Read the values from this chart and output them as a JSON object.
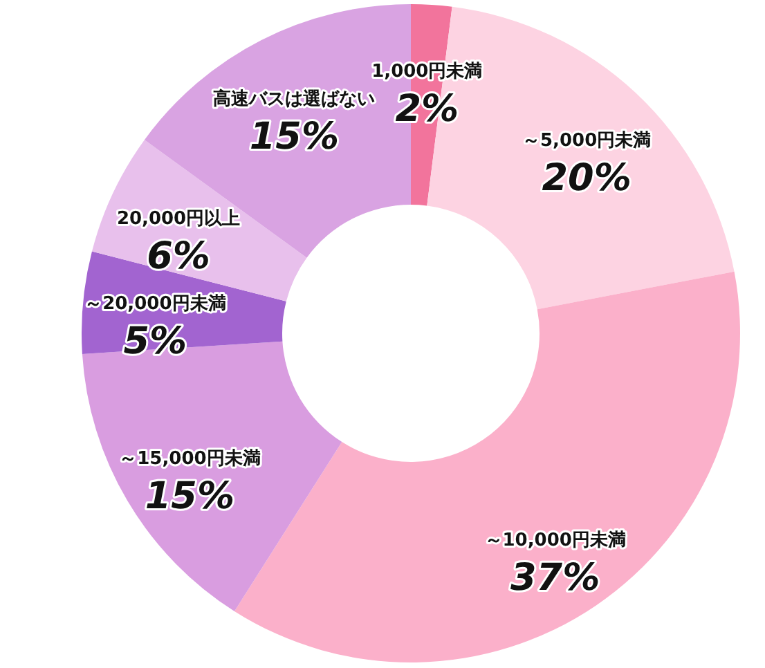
{
  "chart_data": {
    "type": "donut",
    "categories": [
      "1,000円未満",
      "～5,000円未満",
      "～10,000円未満",
      "～15,000円未満",
      "～20,000円未満",
      "20,000円以上",
      "高速バスは選ばない"
    ],
    "values": [
      2,
      20,
      37,
      15,
      5,
      6,
      15
    ],
    "colors": [
      "#f2749c",
      "#fdd3e2",
      "#fbb0ca",
      "#d99de0",
      "#a264d0",
      "#e8c0ec",
      "#d9a3e2"
    ],
    "value_labels": [
      "2%",
      "20%",
      "37%",
      "15%",
      "5%",
      "6%",
      "15%"
    ]
  }
}
